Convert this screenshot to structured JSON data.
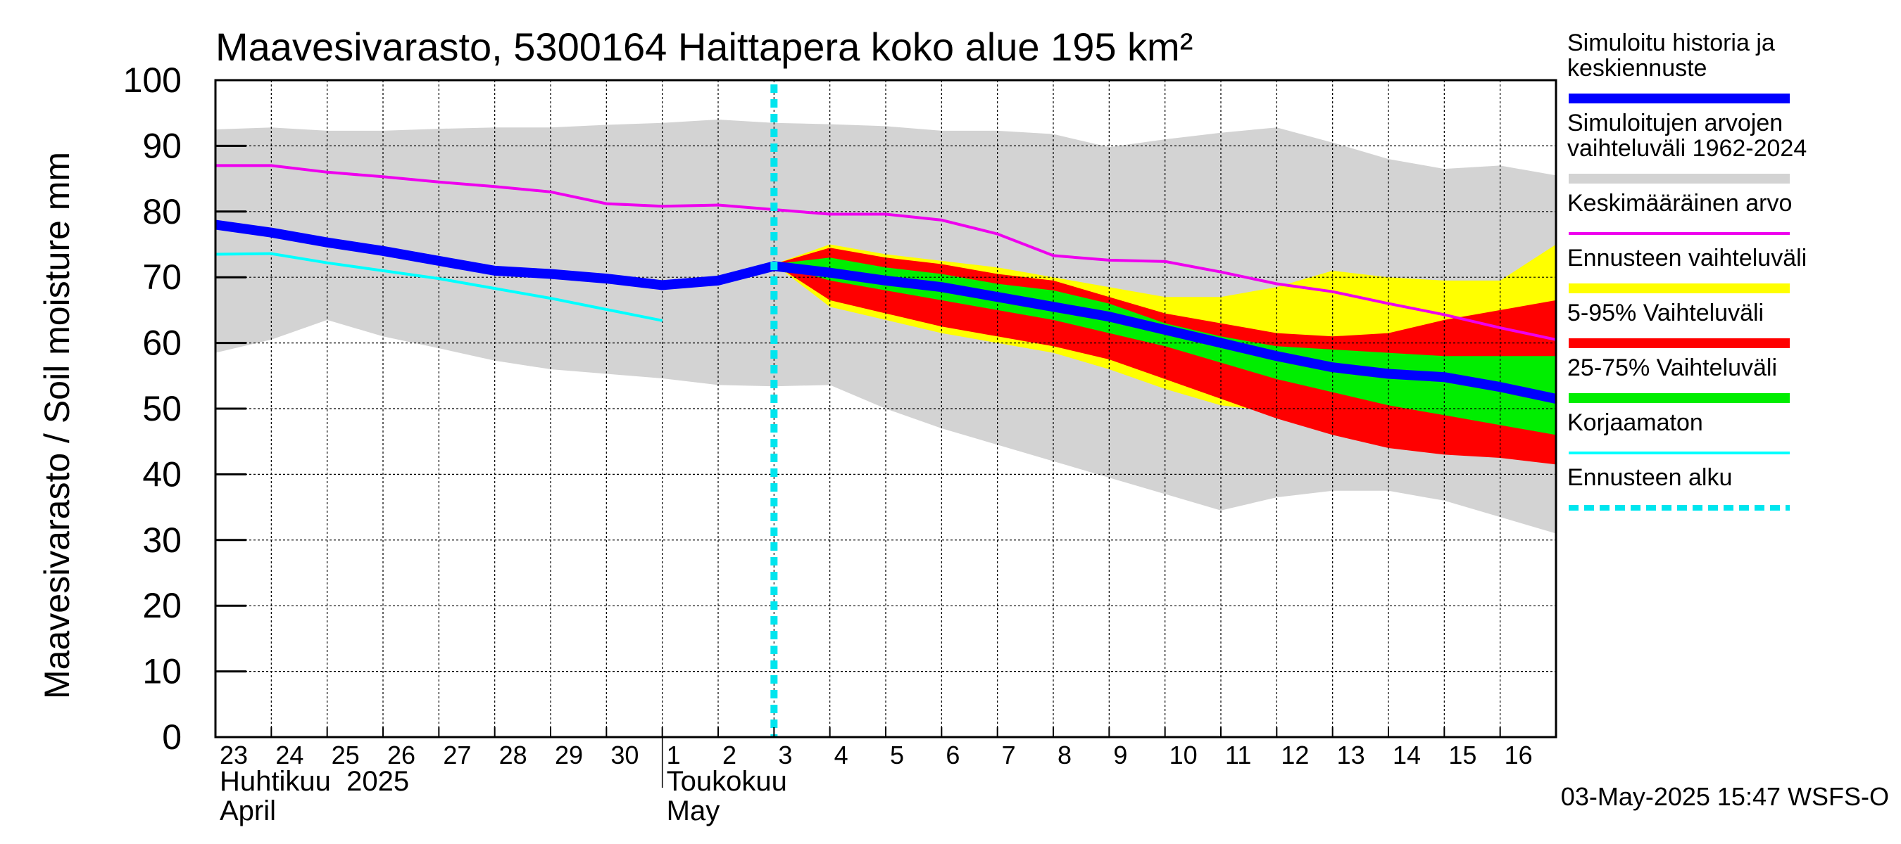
{
  "chart_data": {
    "type": "line",
    "title": "Maavesivarasto, 5300164 Haittapera koko alue 195 km²",
    "ylabel": "Maavesivarasto / Soil moisture   mm",
    "ylim": [
      0,
      100
    ],
    "yticks": [
      0,
      10,
      20,
      30,
      40,
      50,
      60,
      70,
      80,
      90,
      100
    ],
    "x_day_labels": [
      "23",
      "24",
      "25",
      "26",
      "27",
      "28",
      "29",
      "30",
      "1",
      "2",
      "3",
      "4",
      "5",
      "6",
      "7",
      "8",
      "9",
      "10",
      "11",
      "12",
      "13",
      "14",
      "15",
      "16"
    ],
    "month_labels": [
      {
        "fi": "Huhtikuu  2025",
        "en": "April",
        "start_index": 0
      },
      {
        "fi": "Toukokuu",
        "en": "May",
        "start_index": 8
      }
    ],
    "x_range": [
      0,
      24
    ],
    "forecast_start": 10,
    "timestamp": "03-May-2025 15:47 WSFS-O",
    "colors": {
      "history": "#0000ff",
      "range_hist": "#d3d3d3",
      "mean": "#ee00ee",
      "forecast_range": "#ffff00",
      "p5_95": "#ff0000",
      "p25_75": "#00ee00",
      "uncorrected": "#00ffff",
      "forecast_start": "#00e5ee"
    },
    "legend": [
      {
        "label": "Simuloitu historia ja keskiennuste",
        "lines": [
          "Simuloitu historia ja",
          "keskiennuste"
        ],
        "key": "history",
        "style": "thick"
      },
      {
        "label": "Simuloitujen arvojen vaihteluväli 1962-2024",
        "lines": [
          "Simuloitujen arvojen",
          "vaihteluväli 1962-2024"
        ],
        "key": "range_hist",
        "style": "band"
      },
      {
        "label": "Keskimääräinen arvo",
        "lines": [
          "Keskimääräinen arvo"
        ],
        "key": "mean",
        "style": "thin"
      },
      {
        "label": "Ennusteen vaihteluväli",
        "lines": [
          "Ennusteen vaihteluväli"
        ],
        "key": "forecast_range",
        "style": "band"
      },
      {
        "label": "5-95% Vaihteluväli",
        "lines": [
          "5-95% Vaihteluväli"
        ],
        "key": "p5_95",
        "style": "band"
      },
      {
        "label": "25-75% Vaihteluväli",
        "lines": [
          "25-75% Vaihteluväli"
        ],
        "key": "p25_75",
        "style": "band"
      },
      {
        "label": "Korjaamaton",
        "lines": [
          "Korjaamaton"
        ],
        "key": "uncorrected",
        "style": "thin"
      },
      {
        "label": "Ennusteen alku",
        "lines": [
          "Ennusteen alku"
        ],
        "key": "forecast_start",
        "style": "dashed"
      }
    ],
    "series": {
      "range_hist_upper": {
        "x": [
          0,
          1,
          2,
          3,
          4,
          5,
          6,
          7,
          8,
          9,
          10,
          11,
          12,
          13,
          14,
          15,
          16,
          17,
          18,
          19,
          20,
          21,
          22,
          23,
          24
        ],
        "y": [
          92.5,
          92.8,
          92.3,
          92.3,
          92.6,
          92.8,
          92.8,
          93.2,
          93.5,
          94,
          93.5,
          93.3,
          93,
          92.3,
          92.3,
          91.8,
          89.8,
          91,
          92,
          92.8,
          90.5,
          88,
          86.5,
          87,
          85.5
        ]
      },
      "range_hist_lower": {
        "x": [
          0,
          1,
          2,
          3,
          4,
          5,
          6,
          7,
          8,
          9,
          10,
          11,
          12,
          13,
          14,
          15,
          16,
          17,
          18,
          19,
          20,
          21,
          22,
          23,
          24
        ],
        "y": [
          58.5,
          60.5,
          63.5,
          61,
          59.2,
          57.3,
          56,
          55.3,
          54.6,
          53.6,
          53.4,
          53.6,
          50,
          47,
          44.5,
          42,
          39.5,
          37,
          34.5,
          36.5,
          37.5,
          37.5,
          36,
          33.5,
          31
        ]
      },
      "forecast_upper": {
        "x": [
          10,
          11,
          12,
          13,
          14,
          15,
          16,
          17,
          18,
          19,
          20,
          21,
          22,
          23,
          24
        ],
        "y": [
          72,
          75,
          73.5,
          72.5,
          71.5,
          70,
          68.5,
          67,
          67,
          68.5,
          71,
          70,
          69.5,
          69.5,
          75
        ]
      },
      "forecast_lower": {
        "x": [
          10,
          11,
          12,
          13,
          14,
          15,
          16,
          17,
          18,
          19,
          20,
          21,
          22,
          23,
          24
        ],
        "y": [
          72,
          65.5,
          63.5,
          61.5,
          60,
          58.5,
          56,
          53,
          50.5,
          49.5,
          47.5,
          45.5,
          44,
          43,
          41.5
        ]
      },
      "p95": {
        "x": [
          10,
          11,
          12,
          13,
          14,
          15,
          16,
          17,
          18,
          19,
          20,
          21,
          22,
          23,
          24
        ],
        "y": [
          72,
          74.5,
          73,
          72,
          70.5,
          69.5,
          67,
          64.5,
          63,
          61.5,
          61,
          61.5,
          63.5,
          65,
          66.5
        ]
      },
      "p5": {
        "x": [
          10,
          11,
          12,
          13,
          14,
          15,
          16,
          17,
          18,
          19,
          20,
          21,
          22,
          23,
          24
        ],
        "y": [
          72,
          66.5,
          64.5,
          62.5,
          61,
          59.5,
          57.5,
          54.5,
          51.5,
          48.5,
          46,
          44,
          43,
          42.5,
          41.5
        ]
      },
      "p75": {
        "x": [
          10,
          11,
          12,
          13,
          14,
          15,
          16,
          17,
          18,
          19,
          20,
          21,
          22,
          23,
          24
        ],
        "y": [
          72,
          73,
          71.5,
          70.5,
          69,
          68,
          66,
          63,
          61,
          59.5,
          59,
          58.5,
          58,
          58,
          58
        ]
      },
      "p25": {
        "x": [
          10,
          11,
          12,
          13,
          14,
          15,
          16,
          17,
          18,
          19,
          20,
          21,
          22,
          23,
          24
        ],
        "y": [
          72,
          69.5,
          68,
          66.5,
          65,
          63.5,
          61.5,
          59.5,
          57,
          54.5,
          52.5,
          50.5,
          49,
          47.5,
          46
        ]
      },
      "history": {
        "x": [
          0,
          1,
          2,
          3,
          4,
          5,
          6,
          7,
          8,
          9,
          10,
          11,
          12,
          13,
          14,
          15,
          16,
          17,
          18,
          19,
          20,
          21,
          22,
          23,
          24
        ],
        "y": [
          78,
          76.8,
          75.3,
          74,
          72.5,
          71,
          70.5,
          69.8,
          68.8,
          69.5,
          71.7,
          70.7,
          69.5,
          68.5,
          67,
          65.5,
          64,
          62,
          60,
          58,
          56.3,
          55.3,
          54.8,
          53.3,
          51.5
        ]
      },
      "mean": {
        "x": [
          0,
          1,
          2,
          3,
          4,
          5,
          6,
          7,
          8,
          9,
          10,
          11,
          12,
          13,
          14,
          15,
          16,
          17,
          18,
          19,
          20,
          21,
          22,
          23,
          24
        ],
        "y": [
          87,
          87,
          86,
          85.3,
          84.5,
          83.8,
          83,
          81.2,
          80.8,
          81,
          80.3,
          79.6,
          79.6,
          78.7,
          76.6,
          73.3,
          72.6,
          72.4,
          70.8,
          69,
          67.8,
          66,
          64.3,
          62.3,
          60.5
        ]
      },
      "uncorrected": {
        "x": [
          0,
          1,
          2,
          3,
          4,
          5,
          6,
          7,
          8
        ],
        "y": [
          73.5,
          73.6,
          72.2,
          71,
          69.8,
          68.3,
          66.8,
          65.1,
          63.4
        ]
      }
    }
  }
}
